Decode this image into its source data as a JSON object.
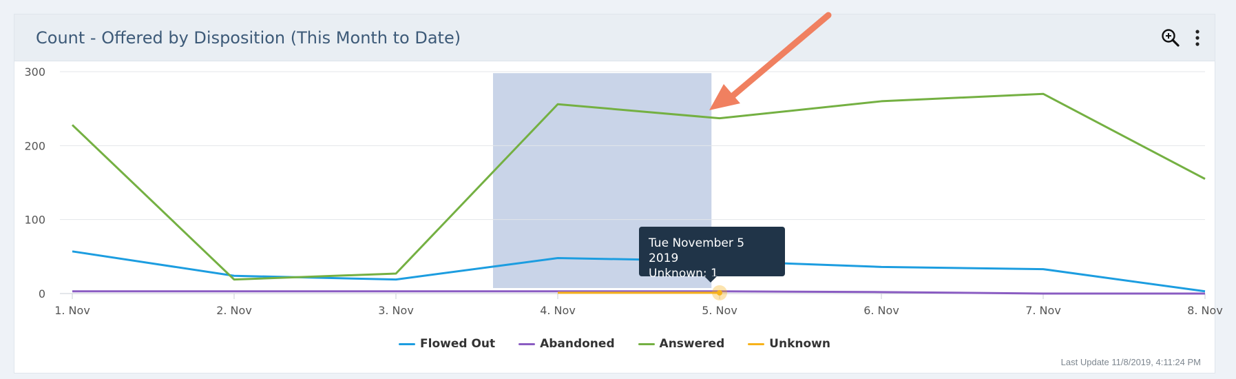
{
  "header": {
    "title": "Count - Offered by Disposition (This Month to Date)",
    "zoom_icon": "zoom-in-icon",
    "menu_icon": "more-vertical-icon"
  },
  "chart_data": {
    "type": "line",
    "x": [
      "1. Nov",
      "2. Nov",
      "3. Nov",
      "4. Nov",
      "5. Nov",
      "6. Nov",
      "7. Nov",
      "8. Nov"
    ],
    "yticks": [
      "0",
      "100",
      "200",
      "300"
    ],
    "ylim": [
      0,
      300
    ],
    "grid": true,
    "legend_position": "bottom-center",
    "highlight_band": {
      "from_index": 2.6,
      "to_index": 3.95,
      "y_top": 298
    },
    "series": [
      {
        "name": "Flowed Out",
        "color": "#1c9de0",
        "values": [
          57,
          24,
          19,
          48,
          44,
          36,
          33,
          3
        ]
      },
      {
        "name": "Abandoned",
        "color": "#8a5cc2",
        "values": [
          3,
          3,
          3,
          3,
          3,
          2,
          0,
          0
        ]
      },
      {
        "name": "Answered",
        "color": "#74b042",
        "values": [
          228,
          19,
          27,
          256,
          237,
          260,
          270,
          155
        ]
      },
      {
        "name": "Unknown",
        "color": "#f7b21a",
        "values": [
          null,
          null,
          null,
          1,
          1,
          null,
          null,
          null
        ]
      }
    ]
  },
  "tooltip": {
    "date": "Tue November 5 2019",
    "value_line": "Unknown: 1"
  },
  "footer": {
    "last_update": "Last Update 11/8/2019, 4:11:24 PM"
  },
  "colors": {
    "highlight": "#c9d4e8",
    "arrow": "#f08060",
    "header_bg": "#e9eef3"
  }
}
